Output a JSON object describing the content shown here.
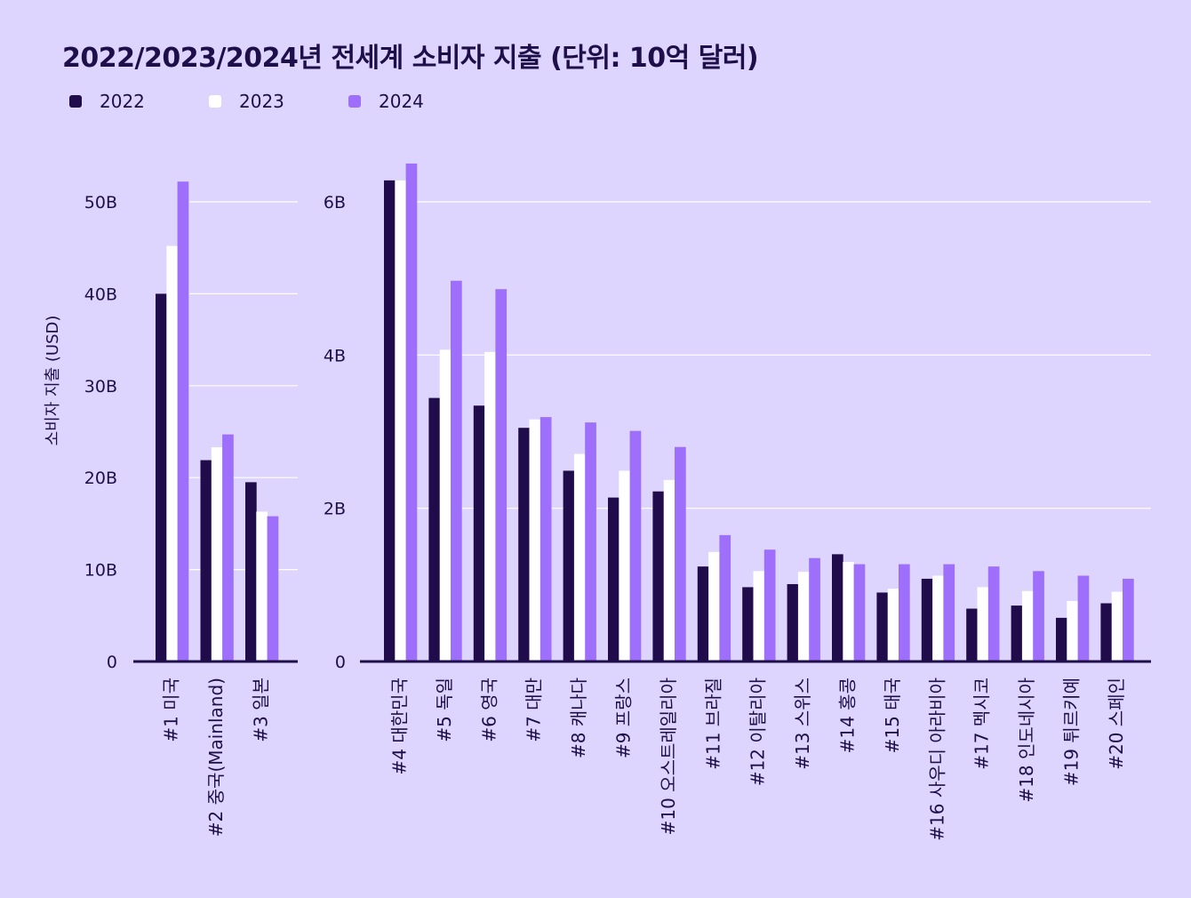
{
  "title": "2022/2023/2024년 전세계 소비자 지출 (단위: 10억 달러)",
  "colors": {
    "background": "#ddd5fd",
    "s2022": "#200b4b",
    "s2023": "#ffffff",
    "s2024": "#9d6ffb",
    "axis": "#1e0f4a",
    "grid": "#ffffff"
  },
  "chart_data": [
    {
      "type": "bar",
      "panel": "left",
      "ylabel": "소비자 지출 (USD)",
      "ylim": [
        0,
        50
      ],
      "yticks": [
        0,
        10,
        20,
        30,
        40,
        50
      ],
      "ytick_labels": [
        "0",
        "10B",
        "20B",
        "30B",
        "40B",
        "50B"
      ],
      "grid": true,
      "legend": "top-left",
      "categories": [
        "#1 미국",
        "#2 중국(Mainland)",
        "#3 일본"
      ],
      "series": [
        {
          "name": "2022",
          "values": [
            40.0,
            21.9,
            19.5
          ]
        },
        {
          "name": "2023",
          "values": [
            45.2,
            23.3,
            16.3
          ]
        },
        {
          "name": "2024",
          "values": [
            52.2,
            24.7,
            15.8
          ]
        }
      ]
    },
    {
      "type": "bar",
      "panel": "right",
      "ylim": [
        0,
        6
      ],
      "yticks": [
        0,
        2,
        4,
        6
      ],
      "ytick_labels": [
        "0",
        "2B",
        "4B",
        "6B"
      ],
      "grid": true,
      "categories": [
        "#4 대한민국",
        "#5 독일",
        "#6 영국",
        "#7 대만",
        "#8 캐나다",
        "#9 프랑스",
        "#10 오스트레일리아",
        "#11 브라질",
        "#12 이탈리아",
        "#13 스위스",
        "#14 홍콩",
        "#15 태국",
        "#16 사우디 아라비아",
        "#17 멕시코",
        "#18 인도네시아",
        "#19 튀르키예",
        "#20 스페인"
      ],
      "series": [
        {
          "name": "2022",
          "values": [
            6.28,
            3.44,
            3.34,
            3.05,
            2.49,
            2.14,
            2.22,
            1.24,
            0.97,
            1.01,
            1.4,
            0.9,
            1.08,
            0.69,
            0.73,
            0.57,
            0.76
          ]
        },
        {
          "name": "2023",
          "values": [
            6.28,
            4.07,
            4.04,
            3.16,
            2.71,
            2.49,
            2.37,
            1.43,
            1.18,
            1.17,
            1.3,
            0.95,
            1.12,
            0.97,
            0.92,
            0.79,
            0.91
          ]
        },
        {
          "name": "2024",
          "values": [
            6.5,
            4.97,
            4.86,
            3.19,
            3.12,
            3.01,
            2.8,
            1.65,
            1.46,
            1.35,
            1.27,
            1.27,
            1.27,
            1.24,
            1.18,
            1.12,
            1.08
          ]
        }
      ]
    }
  ]
}
